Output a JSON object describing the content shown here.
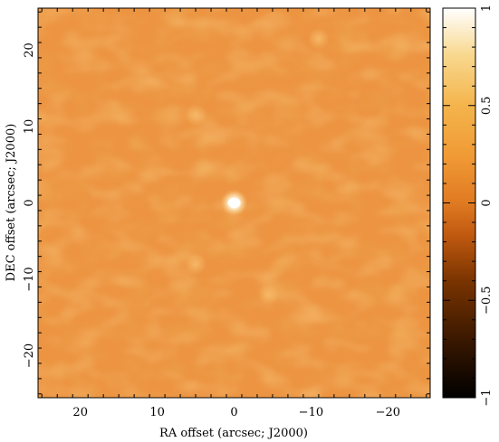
{
  "chart_data": {
    "type": "heatmap",
    "title": "",
    "xlabel": "RA offset (arcsec; J2000)",
    "ylabel": "DEC offset (arcsec; J2000)",
    "xlim": [
      25.5,
      -25.5
    ],
    "ylim": [
      -25.5,
      25.5
    ],
    "x_ticks": [
      20,
      10,
      0,
      -10,
      -20
    ],
    "x_tick_labels": [
      "20",
      "10",
      "0",
      "−10",
      "−20"
    ],
    "y_ticks": [
      20,
      10,
      0,
      -10,
      -20
    ],
    "y_tick_labels": [
      "20",
      "10",
      "0",
      "−10",
      "−20"
    ],
    "colorbar": {
      "range": [
        -1,
        1
      ],
      "ticks": [
        1,
        0.5,
        0,
        -0.5,
        -1
      ],
      "tick_labels": [
        "1",
        "0.5",
        "0",
        "−0.5",
        "−1"
      ],
      "colormap": "heat"
    },
    "background_level": -0.1,
    "features": [
      {
        "x": 0.0,
        "y": 0.0,
        "value": 1.0,
        "label": "central peak"
      },
      {
        "x": 5.0,
        "y": 11.5,
        "value": 0.2
      },
      {
        "x": -4.5,
        "y": -12.0,
        "value": 0.18
      },
      {
        "x": -11.0,
        "y": 21.5,
        "value": 0.15
      },
      {
        "x": 5.0,
        "y": -8.0,
        "value": 0.12
      }
    ],
    "grid": false
  }
}
